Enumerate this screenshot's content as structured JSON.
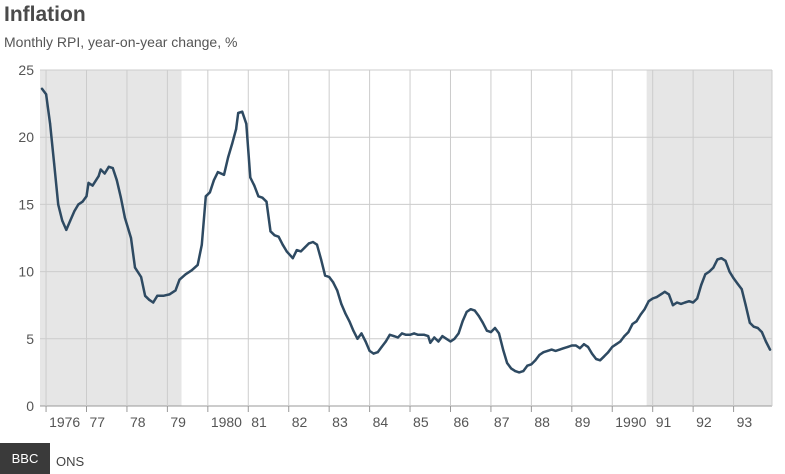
{
  "header": {
    "title": "Inflation",
    "subtitle": "Monthly RPI, year-on-year change, %"
  },
  "footer": {
    "source_label": "ONS",
    "logo_badge": "BBC"
  },
  "colors": {
    "line": "#2e4a62",
    "shade": "#e6e6e6",
    "grid": "#cccccc",
    "axis": "#999999"
  },
  "chart_data": {
    "type": "line",
    "title": "Inflation",
    "subtitle": "Monthly RPI, year-on-year change, %",
    "xlabel": "",
    "ylabel": "",
    "ylim": [
      0,
      25
    ],
    "xlim": [
      1975.85,
      1993.95
    ],
    "yticks": [
      0,
      5,
      10,
      15,
      20,
      25
    ],
    "xticks": [
      {
        "value": 1976,
        "label": "1976"
      },
      {
        "value": 1977,
        "label": "77"
      },
      {
        "value": 1978,
        "label": "78"
      },
      {
        "value": 1979,
        "label": "79"
      },
      {
        "value": 1980,
        "label": "1980"
      },
      {
        "value": 1981,
        "label": "81"
      },
      {
        "value": 1982,
        "label": "82"
      },
      {
        "value": 1983,
        "label": "83"
      },
      {
        "value": 1984,
        "label": "84"
      },
      {
        "value": 1985,
        "label": "85"
      },
      {
        "value": 1986,
        "label": "86"
      },
      {
        "value": 1987,
        "label": "87"
      },
      {
        "value": 1988,
        "label": "88"
      },
      {
        "value": 1989,
        "label": "89"
      },
      {
        "value": 1990,
        "label": "1990"
      },
      {
        "value": 1991,
        "label": "91"
      },
      {
        "value": 1992,
        "label": "92"
      },
      {
        "value": 1993,
        "label": "93"
      }
    ],
    "grid": true,
    "shaded_ranges": [
      [
        1975.85,
        1979.35
      ],
      [
        1990.85,
        1993.95
      ]
    ],
    "series": [
      {
        "points": [
          [
            1975.9,
            23.6
          ],
          [
            1976.0,
            23.2
          ],
          [
            1976.1,
            21.0
          ],
          [
            1976.2,
            18.0
          ],
          [
            1976.3,
            15.0
          ],
          [
            1976.4,
            13.8
          ],
          [
            1976.5,
            13.1
          ],
          [
            1976.6,
            13.8
          ],
          [
            1976.7,
            14.5
          ],
          [
            1976.8,
            15.0
          ],
          [
            1976.9,
            15.2
          ],
          [
            1977.0,
            15.6
          ],
          [
            1977.05,
            16.6
          ],
          [
            1977.15,
            16.4
          ],
          [
            1977.3,
            17.1
          ],
          [
            1977.35,
            17.6
          ],
          [
            1977.45,
            17.3
          ],
          [
            1977.55,
            17.8
          ],
          [
            1977.65,
            17.7
          ],
          [
            1977.75,
            16.8
          ],
          [
            1977.85,
            15.5
          ],
          [
            1977.95,
            14.0
          ],
          [
            1978.1,
            12.5
          ],
          [
            1978.2,
            10.3
          ],
          [
            1978.35,
            9.6
          ],
          [
            1978.45,
            8.2
          ],
          [
            1978.55,
            7.9
          ],
          [
            1978.65,
            7.7
          ],
          [
            1978.75,
            8.2
          ],
          [
            1978.9,
            8.2
          ],
          [
            1979.05,
            8.3
          ],
          [
            1979.2,
            8.6
          ],
          [
            1979.3,
            9.4
          ],
          [
            1979.45,
            9.8
          ],
          [
            1979.6,
            10.1
          ],
          [
            1979.75,
            10.5
          ],
          [
            1979.85,
            12.0
          ],
          [
            1979.95,
            15.6
          ],
          [
            1980.05,
            15.9
          ],
          [
            1980.15,
            16.8
          ],
          [
            1980.25,
            17.4
          ],
          [
            1980.4,
            17.2
          ],
          [
            1980.5,
            18.5
          ],
          [
            1980.6,
            19.5
          ],
          [
            1980.7,
            20.6
          ],
          [
            1980.75,
            21.8
          ],
          [
            1980.85,
            21.9
          ],
          [
            1980.95,
            21.0
          ],
          [
            1981.05,
            17.0
          ],
          [
            1981.15,
            16.4
          ],
          [
            1981.25,
            15.6
          ],
          [
            1981.35,
            15.5
          ],
          [
            1981.45,
            15.2
          ],
          [
            1981.55,
            13.0
          ],
          [
            1981.65,
            12.7
          ],
          [
            1981.75,
            12.6
          ],
          [
            1981.85,
            12.0
          ],
          [
            1981.95,
            11.5
          ],
          [
            1982.1,
            11.0
          ],
          [
            1982.2,
            11.6
          ],
          [
            1982.3,
            11.5
          ],
          [
            1982.4,
            11.8
          ],
          [
            1982.5,
            12.1
          ],
          [
            1982.6,
            12.2
          ],
          [
            1982.7,
            12.0
          ],
          [
            1982.8,
            10.9
          ],
          [
            1982.9,
            9.7
          ],
          [
            1983.0,
            9.6
          ],
          [
            1983.1,
            9.2
          ],
          [
            1983.2,
            8.6
          ],
          [
            1983.3,
            7.6
          ],
          [
            1983.4,
            6.9
          ],
          [
            1983.5,
            6.3
          ],
          [
            1983.6,
            5.6
          ],
          [
            1983.7,
            5.0
          ],
          [
            1983.8,
            5.4
          ],
          [
            1983.9,
            4.8
          ],
          [
            1984.0,
            4.1
          ],
          [
            1984.1,
            3.9
          ],
          [
            1984.2,
            4.0
          ],
          [
            1984.3,
            4.4
          ],
          [
            1984.4,
            4.8
          ],
          [
            1984.5,
            5.3
          ],
          [
            1984.6,
            5.2
          ],
          [
            1984.7,
            5.1
          ],
          [
            1984.8,
            5.4
          ],
          [
            1984.9,
            5.3
          ],
          [
            1985.0,
            5.3
          ],
          [
            1985.1,
            5.4
          ],
          [
            1985.2,
            5.3
          ],
          [
            1985.35,
            5.3
          ],
          [
            1985.45,
            5.2
          ],
          [
            1985.5,
            4.7
          ],
          [
            1985.6,
            5.1
          ],
          [
            1985.7,
            4.8
          ],
          [
            1985.8,
            5.2
          ],
          [
            1985.9,
            5.0
          ],
          [
            1986.0,
            4.8
          ],
          [
            1986.1,
            5.0
          ],
          [
            1986.2,
            5.4
          ],
          [
            1986.3,
            6.3
          ],
          [
            1986.4,
            7.0
          ],
          [
            1986.5,
            7.2
          ],
          [
            1986.6,
            7.1
          ],
          [
            1986.7,
            6.7
          ],
          [
            1986.8,
            6.2
          ],
          [
            1986.9,
            5.6
          ],
          [
            1987.0,
            5.5
          ],
          [
            1987.1,
            5.8
          ],
          [
            1987.2,
            5.4
          ],
          [
            1987.3,
            4.2
          ],
          [
            1987.4,
            3.2
          ],
          [
            1987.5,
            2.8
          ],
          [
            1987.6,
            2.6
          ],
          [
            1987.7,
            2.5
          ],
          [
            1987.8,
            2.6
          ],
          [
            1987.9,
            3.0
          ],
          [
            1988.0,
            3.1
          ],
          [
            1988.1,
            3.4
          ],
          [
            1988.2,
            3.8
          ],
          [
            1988.3,
            4.0
          ],
          [
            1988.4,
            4.1
          ],
          [
            1988.5,
            4.2
          ],
          [
            1988.6,
            4.1
          ],
          [
            1988.7,
            4.2
          ],
          [
            1988.8,
            4.3
          ],
          [
            1988.9,
            4.4
          ],
          [
            1989.0,
            4.5
          ],
          [
            1989.1,
            4.5
          ],
          [
            1989.2,
            4.3
          ],
          [
            1989.3,
            4.6
          ],
          [
            1989.4,
            4.4
          ],
          [
            1989.5,
            3.9
          ],
          [
            1989.6,
            3.5
          ],
          [
            1989.7,
            3.4
          ],
          [
            1989.8,
            3.7
          ],
          [
            1989.9,
            4.0
          ],
          [
            1990.0,
            4.4
          ],
          [
            1990.1,
            4.6
          ],
          [
            1990.2,
            4.8
          ],
          [
            1990.3,
            5.2
          ],
          [
            1990.4,
            5.5
          ],
          [
            1990.5,
            6.1
          ],
          [
            1990.6,
            6.3
          ],
          [
            1990.7,
            6.8
          ],
          [
            1990.8,
            7.2
          ],
          [
            1990.9,
            7.8
          ],
          [
            1991.0,
            8.0
          ],
          [
            1991.1,
            8.1
          ],
          [
            1991.2,
            8.3
          ],
          [
            1991.3,
            8.5
          ],
          [
            1991.4,
            8.3
          ],
          [
            1991.5,
            7.5
          ],
          [
            1991.6,
            7.7
          ],
          [
            1991.7,
            7.6
          ],
          [
            1991.8,
            7.7
          ],
          [
            1991.9,
            7.8
          ],
          [
            1992.0,
            7.7
          ],
          [
            1992.1,
            8.0
          ],
          [
            1992.2,
            9.0
          ],
          [
            1992.3,
            9.8
          ],
          [
            1992.4,
            10.0
          ],
          [
            1992.5,
            10.3
          ],
          [
            1992.6,
            10.9
          ],
          [
            1992.7,
            11.0
          ],
          [
            1992.8,
            10.8
          ],
          [
            1992.9,
            10.0
          ],
          [
            1993.0,
            9.5
          ],
          [
            1993.1,
            9.1
          ],
          [
            1993.2,
            8.7
          ],
          [
            1993.3,
            7.5
          ],
          [
            1993.4,
            6.2
          ],
          [
            1993.5,
            5.9
          ],
          [
            1993.6,
            5.8
          ],
          [
            1993.7,
            5.5
          ],
          [
            1993.8,
            4.8
          ],
          [
            1993.9,
            4.2
          ]
        ]
      }
    ]
  }
}
